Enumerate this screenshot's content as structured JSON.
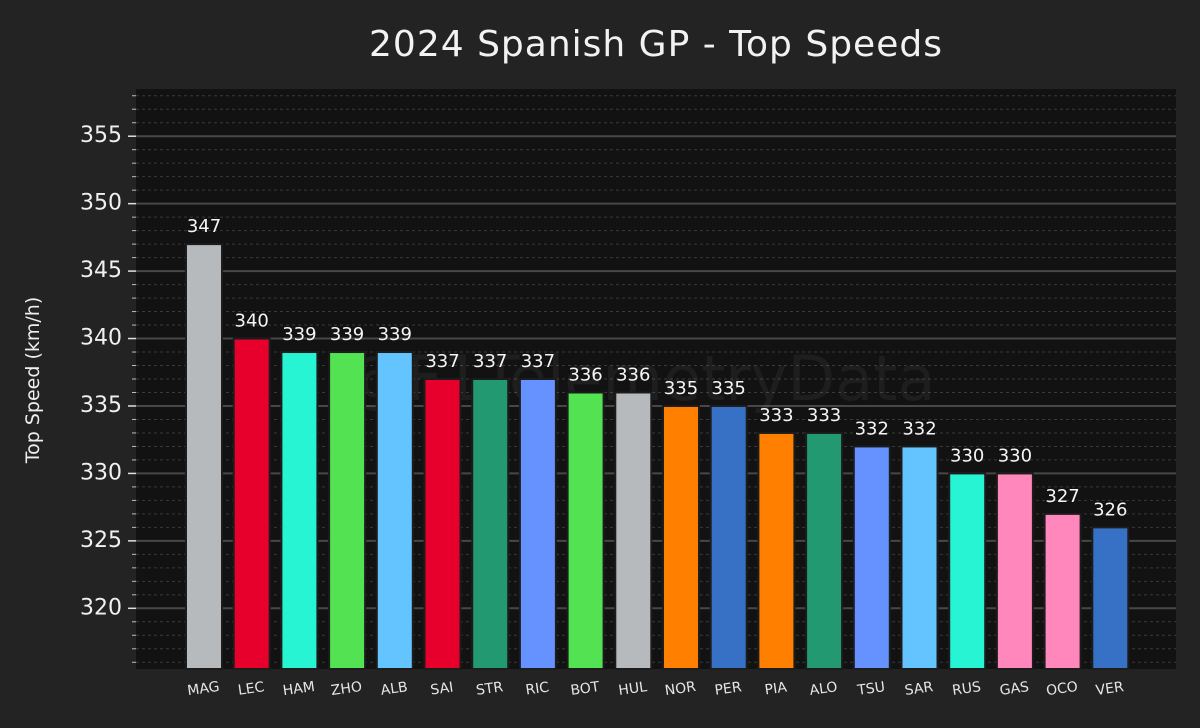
{
  "chart_data": {
    "type": "bar",
    "title": "2024 Spanish GP - Top Speeds",
    "xlabel": "",
    "ylabel": "Top Speed (km/h)",
    "ylim": [
      315.5,
      358.5
    ],
    "yticks": [
      320,
      325,
      330,
      335,
      340,
      345,
      350,
      355
    ],
    "grid": true,
    "watermark": "@F1TelemetryData",
    "categories": [
      "MAG",
      "LEC",
      "HAM",
      "ZHO",
      "ALB",
      "SAI",
      "STR",
      "RIC",
      "BOT",
      "HUL",
      "NOR",
      "PER",
      "PIA",
      "ALO",
      "TSU",
      "SAR",
      "RUS",
      "GAS",
      "OCO",
      "VER"
    ],
    "values": [
      347,
      340,
      339,
      339,
      339,
      337,
      337,
      337,
      336,
      336,
      335,
      335,
      333,
      333,
      332,
      332,
      330,
      330,
      327,
      326
    ],
    "colors": [
      "#B6BABD",
      "#E8002D",
      "#27F4D2",
      "#52E252",
      "#64C4FF",
      "#E8002D",
      "#229971",
      "#6692FF",
      "#52E252",
      "#B6BABD",
      "#FF8000",
      "#3671C6",
      "#FF8000",
      "#229971",
      "#6692FF",
      "#64C4FF",
      "#27F4D2",
      "#FF87BC",
      "#FF87BC",
      "#3671C6"
    ]
  }
}
